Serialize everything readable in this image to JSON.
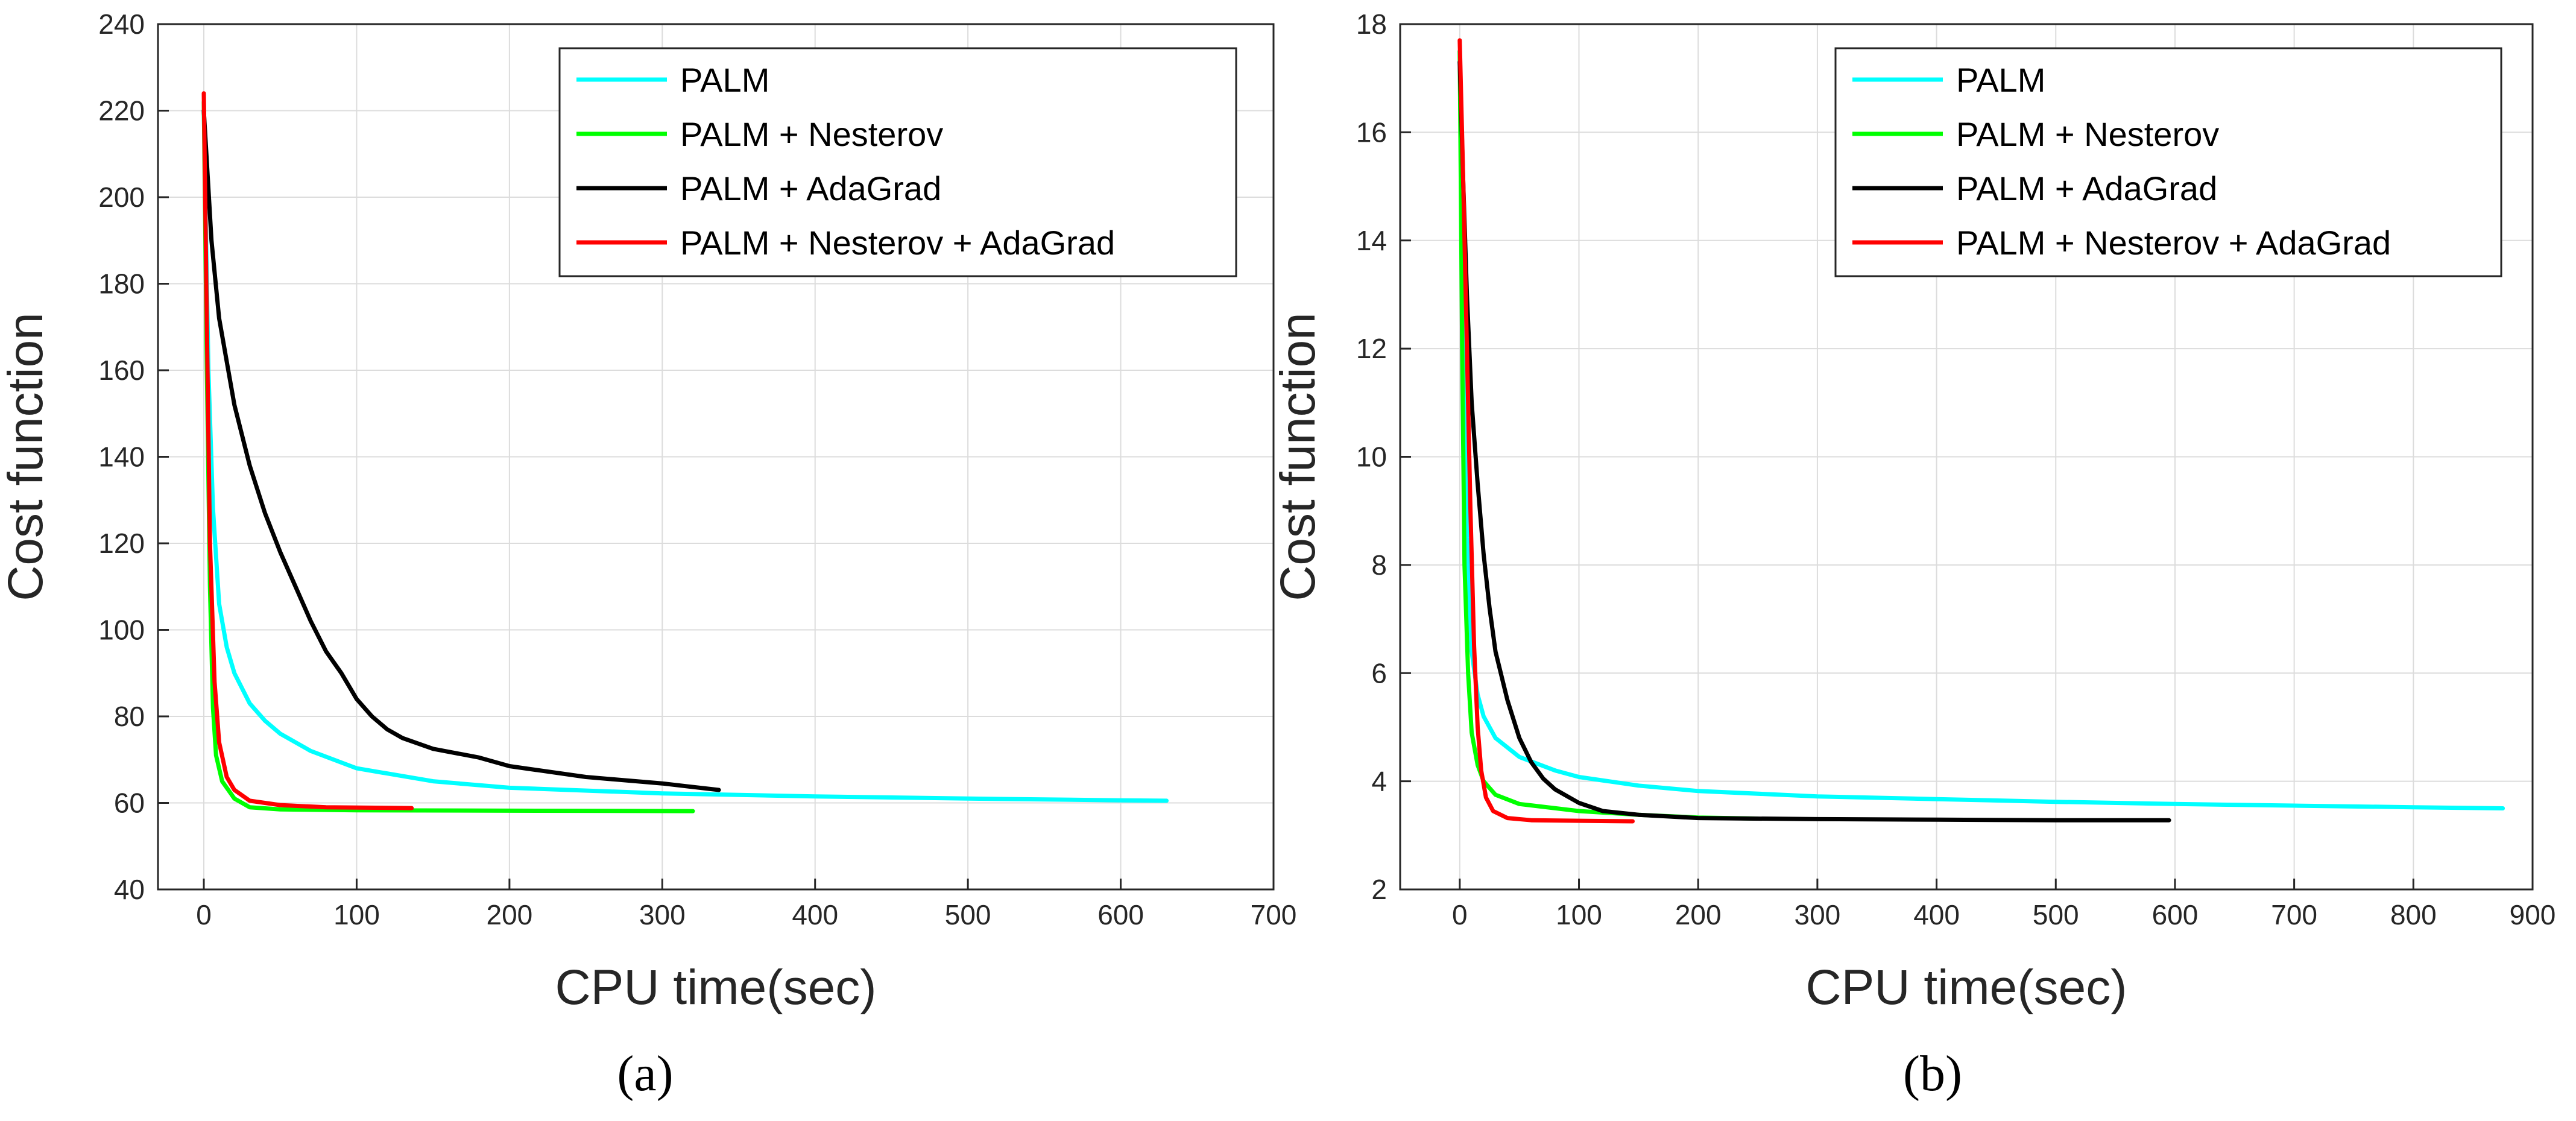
{
  "chart_data": [
    {
      "type": "line",
      "caption": "(a)",
      "xlabel": "CPU time(sec)",
      "ylabel": "Cost function",
      "xlim": [
        -30,
        700
      ],
      "ylim": [
        40,
        240
      ],
      "xticks": [
        0,
        100,
        200,
        300,
        400,
        500,
        600,
        700
      ],
      "yticks": [
        40,
        60,
        80,
        100,
        120,
        140,
        160,
        180,
        200,
        220,
        240
      ],
      "grid": true,
      "legend_position": "top-right",
      "series": [
        {
          "name": "PALM",
          "color": "#00ffff",
          "points": [
            [
              0,
              220
            ],
            [
              3,
              160
            ],
            [
              6,
              128
            ],
            [
              10,
              106
            ],
            [
              15,
              96
            ],
            [
              20,
              90
            ],
            [
              30,
              83
            ],
            [
              40,
              79
            ],
            [
              50,
              76
            ],
            [
              70,
              72
            ],
            [
              100,
              68
            ],
            [
              150,
              65
            ],
            [
              200,
              63.5
            ],
            [
              300,
              62.2
            ],
            [
              400,
              61.5
            ],
            [
              500,
              61.0
            ],
            [
              600,
              60.6
            ],
            [
              630,
              60.5
            ]
          ]
        },
        {
          "name": "PALM + Nesterov",
          "color": "#00ff00",
          "points": [
            [
              0,
              222
            ],
            [
              2,
              160
            ],
            [
              4,
              110
            ],
            [
              6,
              82
            ],
            [
              8,
              71
            ],
            [
              12,
              65
            ],
            [
              20,
              61
            ],
            [
              30,
              59
            ],
            [
              50,
              58.5
            ],
            [
              100,
              58.3
            ],
            [
              200,
              58.2
            ],
            [
              320,
              58.1
            ]
          ]
        },
        {
          "name": "PALM + AdaGrad",
          "color": "#000000",
          "points": [
            [
              0,
              220
            ],
            [
              5,
              190
            ],
            [
              10,
              172
            ],
            [
              20,
              152
            ],
            [
              30,
              138
            ],
            [
              40,
              127
            ],
            [
              50,
              118
            ],
            [
              60,
              110
            ],
            [
              70,
              102
            ],
            [
              80,
              95
            ],
            [
              90,
              90
            ],
            [
              100,
              84
            ],
            [
              110,
              80
            ],
            [
              120,
              77
            ],
            [
              130,
              75
            ],
            [
              150,
              72.5
            ],
            [
              180,
              70.5
            ],
            [
              200,
              68.5
            ],
            [
              250,
              66
            ],
            [
              300,
              64.5
            ],
            [
              337,
              63
            ]
          ]
        },
        {
          "name": "PALM + Nesterov + AdaGrad",
          "color": "#ff0000",
          "points": [
            [
              0,
              224
            ],
            [
              2,
              170
            ],
            [
              4,
              120
            ],
            [
              7,
              88
            ],
            [
              10,
              74
            ],
            [
              15,
              66
            ],
            [
              20,
              63
            ],
            [
              30,
              60.5
            ],
            [
              50,
              59.5
            ],
            [
              80,
              59
            ],
            [
              136,
              58.8
            ]
          ]
        }
      ]
    },
    {
      "type": "line",
      "caption": "(b)",
      "xlabel": "CPU time(sec)",
      "ylabel": "Cost function",
      "xlim": [
        -50,
        900
      ],
      "ylim": [
        2,
        18
      ],
      "xticks": [
        0,
        100,
        200,
        300,
        400,
        500,
        600,
        700,
        800,
        900
      ],
      "yticks": [
        2,
        4,
        6,
        8,
        10,
        12,
        14,
        16,
        18
      ],
      "grid": true,
      "legend_position": "top-right",
      "series": [
        {
          "name": "PALM",
          "color": "#00ffff",
          "points": [
            [
              0,
              17.5
            ],
            [
              3,
              12
            ],
            [
              6,
              8.5
            ],
            [
              10,
              6.4
            ],
            [
              15,
              5.6
            ],
            [
              20,
              5.2
            ],
            [
              30,
              4.8
            ],
            [
              50,
              4.45
            ],
            [
              80,
              4.2
            ],
            [
              100,
              4.08
            ],
            [
              150,
              3.92
            ],
            [
              200,
              3.82
            ],
            [
              300,
              3.72
            ],
            [
              400,
              3.67
            ],
            [
              500,
              3.62
            ],
            [
              600,
              3.58
            ],
            [
              700,
              3.55
            ],
            [
              800,
              3.52
            ],
            [
              875,
              3.5
            ]
          ]
        },
        {
          "name": "PALM + Nesterov",
          "color": "#00ff00",
          "points": [
            [
              0,
              17.5
            ],
            [
              2,
              12
            ],
            [
              4,
              8
            ],
            [
              7,
              6
            ],
            [
              10,
              4.9
            ],
            [
              15,
              4.3
            ],
            [
              20,
              4.0
            ],
            [
              30,
              3.75
            ],
            [
              50,
              3.58
            ],
            [
              100,
              3.45
            ],
            [
              150,
              3.38
            ],
            [
              200,
              3.33
            ],
            [
              250,
              3.31
            ]
          ]
        },
        {
          "name": "PALM + AdaGrad",
          "color": "#000000",
          "points": [
            [
              0,
              17.3
            ],
            [
              3,
              15
            ],
            [
              6,
              13
            ],
            [
              10,
              11
            ],
            [
              15,
              9.5
            ],
            [
              20,
              8.2
            ],
            [
              25,
              7.2
            ],
            [
              30,
              6.4
            ],
            [
              40,
              5.5
            ],
            [
              50,
              4.8
            ],
            [
              60,
              4.35
            ],
            [
              70,
              4.05
            ],
            [
              80,
              3.85
            ],
            [
              100,
              3.6
            ],
            [
              120,
              3.45
            ],
            [
              150,
              3.38
            ],
            [
              200,
              3.32
            ],
            [
              300,
              3.3
            ],
            [
              400,
              3.29
            ],
            [
              500,
              3.28
            ],
            [
              595,
              3.28
            ]
          ]
        },
        {
          "name": "PALM + Nesterov + AdaGrad",
          "color": "#ff0000",
          "points": [
            [
              0,
              17.7
            ],
            [
              3,
              15
            ],
            [
              6,
              12
            ],
            [
              9,
              9
            ],
            [
              12,
              6.5
            ],
            [
              15,
              5
            ],
            [
              18,
              4.2
            ],
            [
              22,
              3.7
            ],
            [
              28,
              3.45
            ],
            [
              40,
              3.32
            ],
            [
              60,
              3.28
            ],
            [
              100,
              3.27
            ],
            [
              145,
              3.26
            ]
          ]
        }
      ]
    }
  ]
}
